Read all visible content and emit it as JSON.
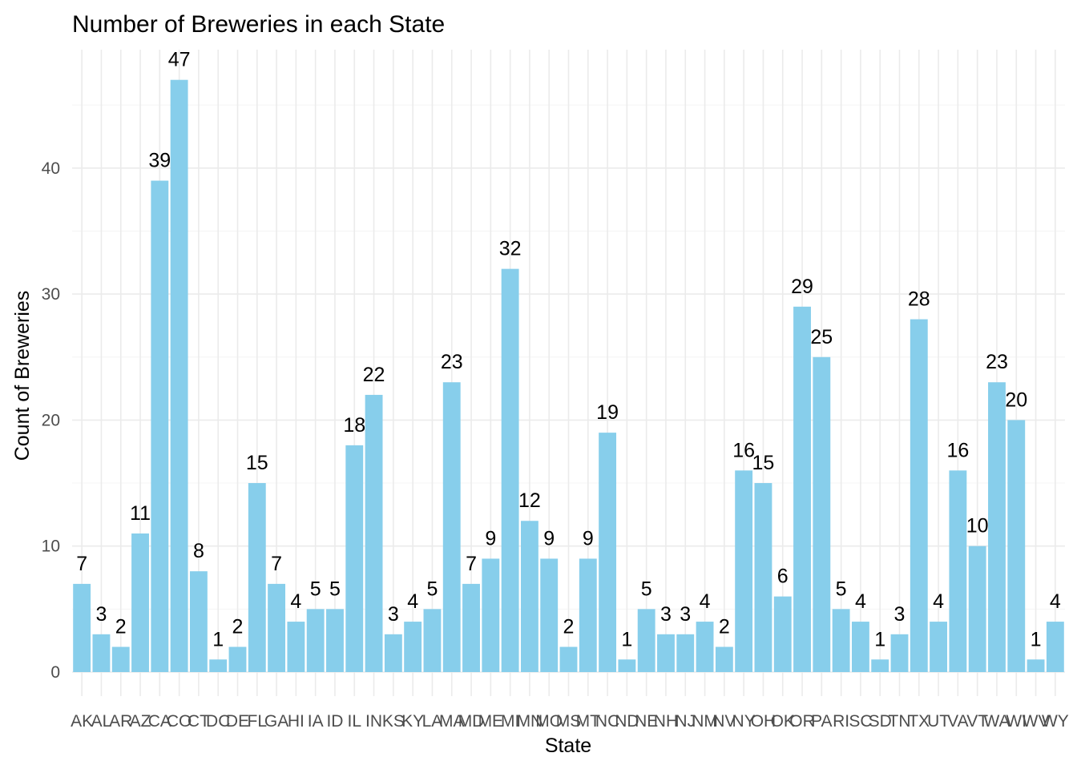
{
  "chart_data": {
    "type": "bar",
    "title": "Number of Breweries in each State",
    "xlabel": "State",
    "ylabel": "Count of Breweries",
    "categories": [
      "AK",
      "AL",
      "AR",
      "AZ",
      "CA",
      "CO",
      "CT",
      "DC",
      "DE",
      "FL",
      "GA",
      "HI",
      "IA",
      "ID",
      "IL",
      "IN",
      "KS",
      "KY",
      "LA",
      "MA",
      "MD",
      "ME",
      "MI",
      "MN",
      "MO",
      "MS",
      "MT",
      "NC",
      "ND",
      "NE",
      "NH",
      "NJ",
      "NM",
      "NV",
      "NY",
      "OH",
      "OK",
      "OR",
      "PA",
      "RI",
      "SC",
      "SD",
      "TN",
      "TX",
      "UT",
      "VA",
      "VT",
      "WA",
      "WI",
      "WV",
      "WY"
    ],
    "values": [
      7,
      3,
      2,
      11,
      39,
      47,
      8,
      1,
      2,
      15,
      7,
      4,
      5,
      5,
      18,
      22,
      3,
      4,
      5,
      23,
      7,
      9,
      32,
      12,
      9,
      2,
      9,
      19,
      1,
      5,
      3,
      3,
      4,
      2,
      16,
      15,
      6,
      29,
      25,
      5,
      4,
      1,
      3,
      28,
      4,
      16,
      10,
      23,
      20,
      1,
      4
    ],
    "yticks": [
      0,
      10,
      20,
      30,
      40
    ],
    "ylim": [
      0,
      47
    ],
    "bar_color": "#87CEEB",
    "grid": true,
    "data_labels": true
  }
}
